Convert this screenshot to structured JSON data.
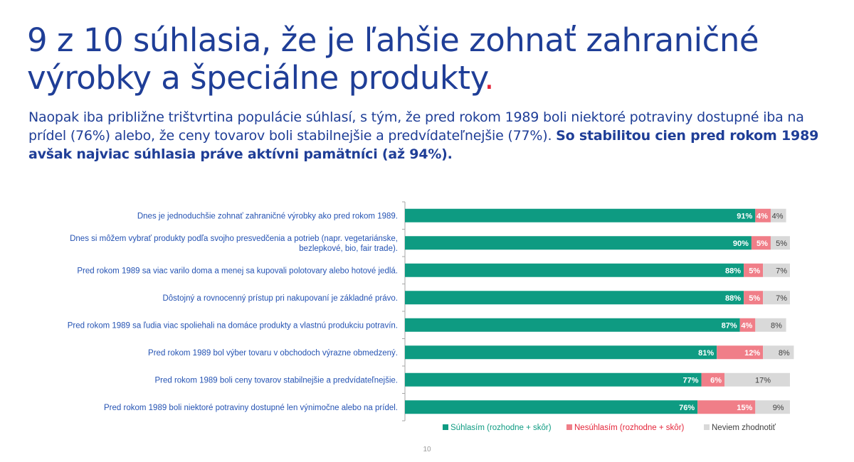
{
  "header": {
    "title": "9 z 10 súhlasia, že je ľahšie zohnať zahraničné výrobky a špeciálne produkty",
    "title_dot": ".",
    "subtitle_regular": "Naopak iba približne trištvrtina populácie súhlasí, s tým, že pred rokom 1989 boli niektoré potraviny dostupné iba na prídel (76%) alebo, že ceny tovarov boli stabilnejšie a predvídateľnejšie (77%). ",
    "subtitle_bold": "So stabilitou cien pred rokom 1989 avšak najviac súhlasia práve aktívni pamätníci (až 94%)."
  },
  "colors": {
    "title": "#1f3e97",
    "accent_dot": "#e4253a",
    "agree": "#0e9b82",
    "disagree": "#f07e88",
    "dontknow": "#d9d9d9",
    "label_text": "#2553b3"
  },
  "chart_data": {
    "type": "bar",
    "orientation": "horizontal",
    "stacked": true,
    "xlim": [
      0,
      100
    ],
    "grid": false,
    "legend_position": "bottom",
    "categories": [
      [
        "Dnes je jednoduchšie zohnať zahraničné výrobky ako pred rokom 1989."
      ],
      [
        "Dnes si môžem vybrať produkty podľa svojho presvedčenia a potrieb (napr. vegetariánske,",
        "bezlepkové, bio, fair trade)."
      ],
      [
        "Pred rokom 1989 sa viac varilo doma a menej sa kupovali polotovary alebo hotové jedlá."
      ],
      [
        "Dôstojný a rovnocenný prístup pri nakupovaní je základné právo."
      ],
      [
        "Pred rokom 1989 sa ľudia viac spoliehali na domáce produkty a vlastnú produkciu potravín."
      ],
      [
        "Pred rokom 1989 bol výber tovaru v obchodoch výrazne obmedzený."
      ],
      [
        "Pred rokom 1989 boli ceny tovarov stabilnejšie a predvídateľnejšie."
      ],
      [
        "Pred rokom 1989 boli niektoré potraviny dostupné len výnimočne alebo na prídel."
      ]
    ],
    "series": [
      {
        "name": "Súhlasím (rozhodne + skôr)",
        "color": "#0e9b82",
        "label_color": "#ffffff",
        "values": [
          91,
          90,
          88,
          88,
          87,
          81,
          77,
          76
        ]
      },
      {
        "name": "Nesúhlasím (rozhodne + skôr)",
        "color": "#f07e88",
        "label_color": "#ffffff",
        "values": [
          4,
          5,
          5,
          5,
          4,
          12,
          6,
          15
        ]
      },
      {
        "name": "Neviem zhodnotiť",
        "color": "#d9d9d9",
        "label_color": "#404040",
        "values": [
          4,
          5,
          7,
          7,
          8,
          8,
          17,
          9
        ]
      }
    ],
    "value_suffix": "%"
  },
  "footer": {
    "page_number": "10"
  }
}
